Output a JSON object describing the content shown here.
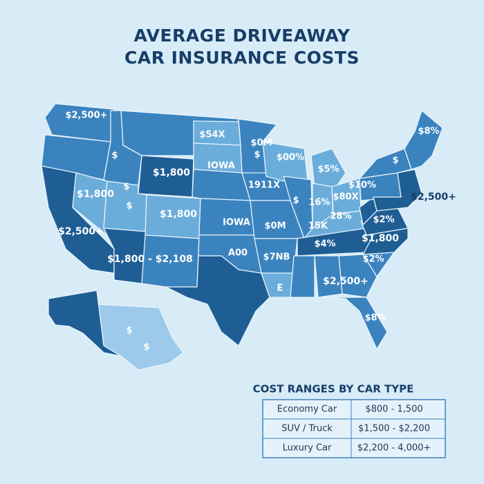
{
  "header": {
    "title_lines": [
      "AVERAGE DRIVEAWAY",
      "CAR INSURANCE COSTS"
    ]
  },
  "map_labels": [
    "$2,500+",
    "$",
    "$54X",
    "$0M",
    "$",
    "$00%",
    "$8%",
    "$",
    "$5%",
    "$1,800",
    "IOWA",
    "$1,800",
    "$",
    "$",
    "1911X",
    "$",
    "16%",
    "$80X",
    "$10%",
    "$2,500+",
    "$1,800",
    "IOWA",
    "$0M",
    "28%",
    "15K",
    "$2%",
    "$2,500+",
    "$1,800",
    "$1,800 - $2,108",
    "A00",
    "$7NB",
    "$4%",
    "$2%",
    "E",
    "$2,500+",
    "$8%",
    "$",
    "$"
  ],
  "legend": {
    "title": "COST RANGES BY CAR TYPE",
    "rows": [
      [
        "Economy Car",
        "$800 - 1,500"
      ],
      [
        "SUV / Truck",
        "$1,500 - $2,200"
      ],
      [
        "Luxury Car",
        "$2,200 - 4,000+"
      ]
    ]
  }
}
